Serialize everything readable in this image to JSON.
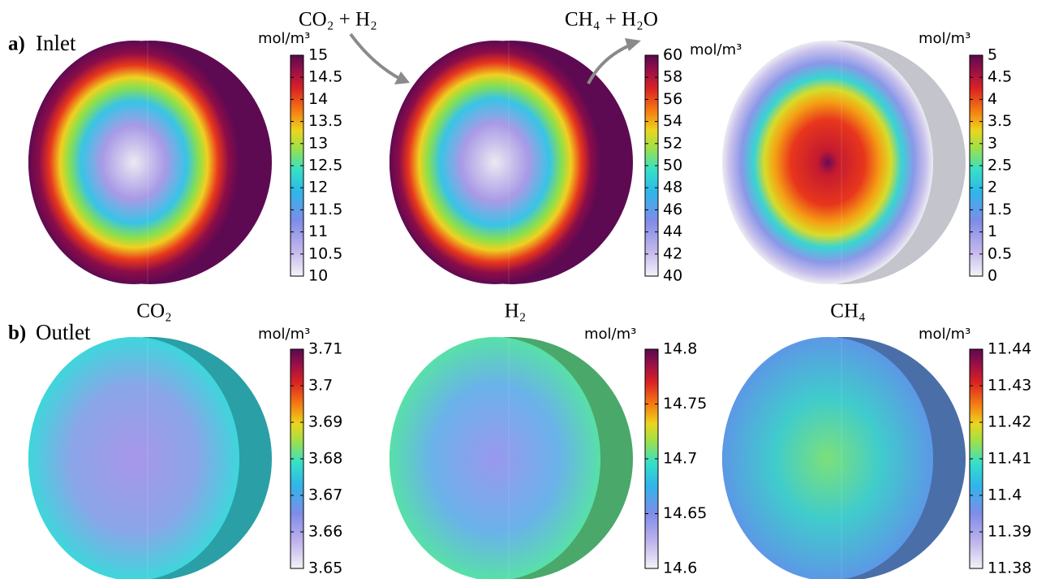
{
  "rows": [
    {
      "marker": "a)",
      "label": "Inlet",
      "annotations": [
        "CO₂ + H₂",
        "CH₄ + H₂O"
      ],
      "panels": [
        {
          "unit": "mol/m³",
          "colorbar": {
            "range": [
              10,
              15
            ],
            "ticks": [
              10,
              10.5,
              11,
              11.5,
              12,
              12.5,
              13,
              13.5,
              14,
              14.5,
              15
            ]
          }
        },
        {
          "unit": "mol/m³",
          "colorbar": {
            "range": [
              40,
              60
            ],
            "ticks": [
              40,
              42,
              44,
              46,
              48,
              50,
              52,
              54,
              56,
              58,
              60
            ]
          }
        },
        {
          "unit": "mol/m³",
          "colorbar": {
            "range": [
              0,
              5
            ],
            "ticks": [
              0,
              0.5,
              1,
              1.5,
              2,
              2.5,
              3,
              3.5,
              4,
              4.5,
              5
            ]
          }
        }
      ]
    },
    {
      "marker": "b)",
      "label": "Outlet",
      "panels": [
        {
          "title": "CO₂",
          "unit": "mol/m³",
          "colorbar": {
            "range": [
              3.65,
              3.71
            ],
            "ticks": [
              3.65,
              3.66,
              3.67,
              3.68,
              3.69,
              3.7,
              3.71
            ]
          }
        },
        {
          "title": "H₂",
          "unit": "mol/m³",
          "colorbar": {
            "range": [
              14.6,
              14.8
            ],
            "ticks": [
              14.6,
              14.65,
              14.7,
              14.75,
              14.8
            ]
          }
        },
        {
          "title": "CH₄",
          "unit": "mol/m³",
          "colorbar": {
            "range": [
              11.38,
              11.44
            ],
            "ticks": [
              11.38,
              11.39,
              11.4,
              11.41,
              11.42,
              11.43,
              11.44
            ]
          }
        }
      ]
    }
  ]
}
